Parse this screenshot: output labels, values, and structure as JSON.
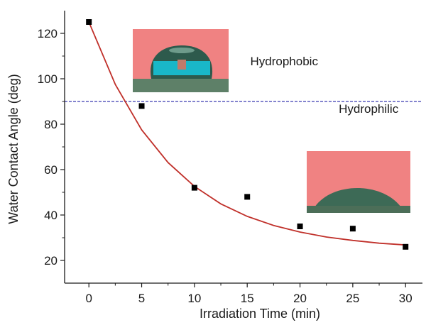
{
  "chart_data": {
    "type": "scatter",
    "xlabel": "Irradiation Time (min)",
    "ylabel": "Water Contact Angle (deg)",
    "xlim": [
      -2.3,
      31.6
    ],
    "ylim": [
      10,
      130
    ],
    "x_ticks": [
      0,
      5,
      10,
      15,
      20,
      25,
      30
    ],
    "y_ticks": [
      20,
      40,
      60,
      80,
      100,
      120
    ],
    "series": [
      {
        "x": [
          0,
          5,
          10,
          15,
          20,
          25,
          30
        ],
        "y": [
          125,
          88,
          52,
          48,
          35,
          34,
          26
        ],
        "marker": "square",
        "color": "#000000"
      }
    ],
    "fit_curve": {
      "type": "exponential_decay",
      "color": "#c0302a",
      "x_range": [
        0,
        30
      ],
      "y": [
        125,
        97.5,
        77.5,
        63.1,
        52.6,
        44.9,
        39.4,
        35.4,
        32.5,
        30.3,
        28.8,
        27.6,
        26.8
      ]
    },
    "reference_line": {
      "y": 90,
      "color": "#3a3ab0",
      "style": "dashed"
    },
    "annotations": [
      {
        "text": "Hydrophobic",
        "x": 18.5,
        "y": 106
      },
      {
        "text": "Hydrophilic",
        "x": 26.5,
        "y": 85
      }
    ],
    "inset_images": [
      "water-droplet-hydrophobic",
      "water-droplet-hydrophilic"
    ],
    "grid": false,
    "legend": "none"
  }
}
